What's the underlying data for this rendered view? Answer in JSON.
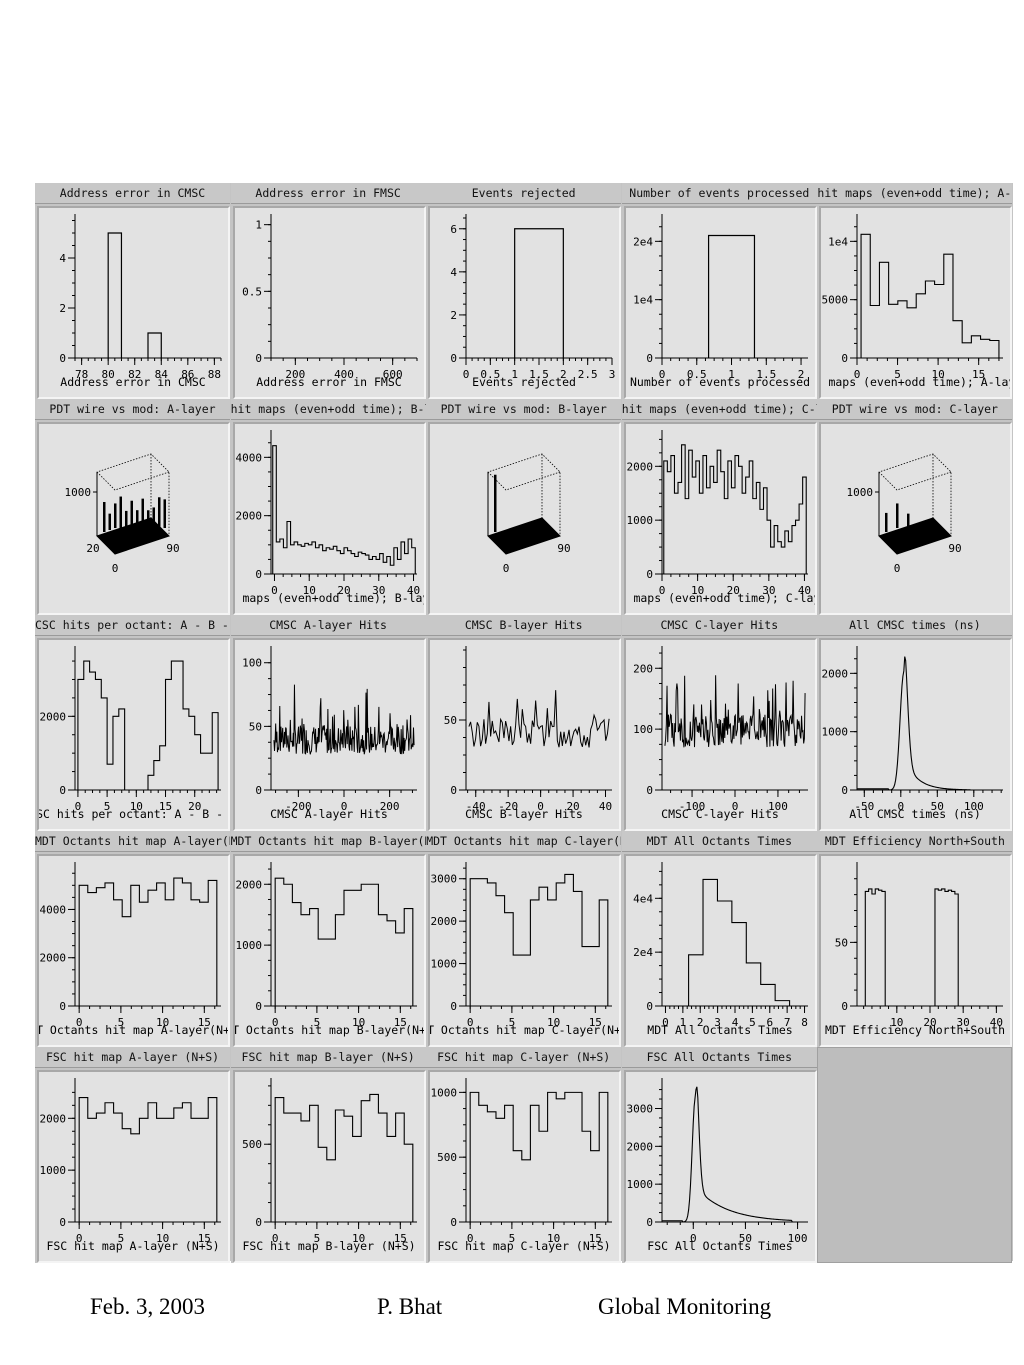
{
  "footer": {
    "date": "Feb. 3, 2003",
    "author": "P. Bhat",
    "title": "Global  Monitoring"
  },
  "colors": {
    "panel_bg": "#e2e2e2",
    "frame": "#c4c4c4",
    "ink": "#000000"
  },
  "panels": [
    {
      "title": "Address error in CMSC",
      "xlabel": "Address error in CMSC",
      "type": "hist",
      "xlim": [
        77.5,
        88.5
      ],
      "ylim": [
        0,
        5.6
      ],
      "xticks": [
        78,
        80,
        82,
        84,
        86,
        88
      ],
      "yticks": [
        0,
        2,
        4
      ],
      "bins": [
        [
          80,
          81,
          5
        ],
        [
          83,
          84,
          1
        ]
      ]
    },
    {
      "title": "Address error in FMSC",
      "xlabel": "Address error in FMSC",
      "type": "empty",
      "xlim": [
        100,
        700
      ],
      "ylim": [
        0,
        1.05
      ],
      "xticks": [
        200,
        400,
        600
      ],
      "yticks": [
        0,
        0.5,
        1
      ]
    },
    {
      "title": "Events rejected",
      "xlabel": "Events rejected",
      "type": "hist",
      "xlim": [
        0,
        3
      ],
      "ylim": [
        0,
        6.5
      ],
      "xticks": [
        0,
        0.5,
        1,
        1.5,
        2,
        2.5,
        3
      ],
      "yticks": [
        0,
        2,
        4,
        6
      ],
      "bins": [
        [
          1,
          2,
          6
        ]
      ]
    },
    {
      "title": "Number of events processed",
      "xlabel": "Number of events processed",
      "type": "hist",
      "xlim": [
        0,
        2.1
      ],
      "ylim": [
        0,
        24000
      ],
      "xticks": [
        0,
        0.5,
        1,
        1.5,
        2
      ],
      "ytick_labels": [
        "0",
        "1e4",
        "2e4"
      ],
      "yticks": [
        0,
        10000,
        20000
      ],
      "bins": [
        [
          0.67,
          1.33,
          21000
        ]
      ]
    },
    {
      "title": "hit maps (even+odd time); A-layer",
      "xlabel": "hit maps (even+odd time); A-layer",
      "type": "step",
      "xlim": [
        0,
        18
      ],
      "ylim": [
        0,
        12000
      ],
      "xticks": [
        0,
        5,
        10,
        15
      ],
      "ytick_labels": [
        "0",
        "5000",
        "1e4"
      ],
      "yticks": [
        0,
        5000,
        10000
      ],
      "values": [
        10600,
        4500,
        8200,
        4600,
        4900,
        4300,
        5500,
        6600,
        6300,
        8900,
        3200,
        1300,
        1900,
        1600,
        1500
      ]
    },
    {
      "title": "PDT wire vs mod: A-layer",
      "type": "lego",
      "ztick": "1000",
      "xlab": "20",
      "ylab": "90",
      "olab": "0",
      "peaks": [
        1100,
        600,
        900,
        1300,
        700,
        1000,
        800,
        1150,
        650,
        900,
        1200,
        1050
      ]
    },
    {
      "title": "hit maps (even+odd time); B-layer",
      "xlabel": "hit maps (even+odd time); B-layer",
      "type": "step",
      "xlim": [
        -1,
        41
      ],
      "ylim": [
        0,
        4800
      ],
      "xticks": [
        0,
        10,
        20,
        30,
        40
      ],
      "yticks": [
        0,
        2000,
        4000
      ],
      "values": [
        4400,
        1100,
        1200,
        900,
        1800,
        1000,
        1100,
        1000,
        950,
        1050,
        1000,
        1100,
        900,
        1000,
        800,
        900,
        850,
        950,
        800,
        700,
        900,
        800,
        700,
        600,
        750,
        700,
        650,
        500,
        600,
        500,
        700,
        400,
        600,
        300,
        900,
        500,
        1100,
        700,
        1200,
        900
      ]
    },
    {
      "title": "PDT wire vs mod: B-layer",
      "type": "lego",
      "ztick": "",
      "xlab": "",
      "ylab": "90",
      "olab": "0",
      "peaks": [
        2100,
        0,
        0,
        0,
        0,
        0,
        0,
        0,
        0,
        0,
        0,
        0
      ]
    },
    {
      "title": "hit maps (even+odd time); C-layer",
      "xlabel": "hit maps (even+odd time); C-layer",
      "type": "step",
      "xlim": [
        0,
        41
      ],
      "ylim": [
        0,
        2600
      ],
      "xticks": [
        0,
        10,
        20,
        30,
        40
      ],
      "yticks": [
        0,
        1000,
        2000
      ],
      "values": [
        2100,
        1900,
        2200,
        1500,
        1700,
        2400,
        1400,
        2300,
        1800,
        2100,
        1500,
        2200,
        1600,
        2000,
        1700,
        2300,
        1900,
        1400,
        2100,
        1600,
        2200,
        2000,
        1500,
        1800,
        2100,
        1400,
        1700,
        1200,
        1600,
        1000,
        500,
        900,
        600,
        500,
        800,
        600,
        900,
        1000,
        1300,
        1800
      ]
    },
    {
      "title": "PDT wire vs mod: C-layer",
      "type": "lego",
      "ztick": "1000",
      "xlab": "",
      "ylab": "90",
      "olab": "0",
      "peaks": [
        700,
        0,
        900,
        0,
        600,
        0,
        0,
        0,
        0,
        0,
        0,
        0
      ]
    },
    {
      "title": "CSC hits per octant: A - B - C",
      "xlabel": "CSC hits per octant: A - B - C",
      "type": "step",
      "xlim": [
        -0.5,
        24.5
      ],
      "ylim": [
        0,
        3800
      ],
      "xticks": [
        0,
        5,
        10,
        15,
        20
      ],
      "yticks": [
        0,
        2000
      ],
      "values": [
        3000,
        3500,
        3200,
        3000,
        2500,
        700,
        2000,
        2200,
        0,
        0,
        0,
        0,
        400,
        800,
        1200,
        3000,
        3500,
        3500,
        2200,
        2000,
        1500,
        1000,
        1000,
        2100
      ]
    },
    {
      "title": "CMSC A-layer Hits",
      "xlabel": "CMSC A-layer Hits",
      "type": "noisy",
      "xlim": [
        -320,
        320
      ],
      "ylim": [
        0,
        110
      ],
      "xticks": [
        -200,
        0,
        200
      ],
      "yticks": [
        0,
        50,
        100
      ],
      "n": 240,
      "base": 28,
      "amp": 38,
      "seed": 7
    },
    {
      "title": "CMSC B-layer Hits",
      "xlabel": "CMSC B-layer Hits",
      "type": "noisy",
      "xlim": [
        -46,
        44
      ],
      "ylim": [
        0,
        100
      ],
      "xticks": [
        -40,
        -20,
        0,
        20,
        40
      ],
      "yticks": [
        0,
        50
      ],
      "n": 85,
      "base": 30,
      "amp": 35,
      "seed": 13
    },
    {
      "title": "CMSC C-layer Hits",
      "xlabel": "CMSC C-layer Hits",
      "type": "noisy",
      "xlim": [
        -170,
        170
      ],
      "ylim": [
        0,
        230
      ],
      "xticks": [
        -100,
        0,
        100
      ],
      "yticks": [
        0,
        100,
        200
      ],
      "n": 200,
      "base": 70,
      "amp": 90,
      "seed": 21
    },
    {
      "title": "All CMSC times (ns)",
      "xlabel": "All CMSC times (ns)",
      "type": "peak",
      "xlim": [
        -60,
        140
      ],
      "ylim": [
        0,
        2400
      ],
      "xticks": [
        -50,
        0,
        50,
        100
      ],
      "yticks": [
        0,
        1000,
        2000
      ],
      "center": 4,
      "height": 2000,
      "width": 5,
      "tail": 18
    },
    {
      "title": "MDT Octants hit map A-layer(N+S)",
      "xlabel": "MDT Octants hit map A-layer(N+S)",
      "type": "step",
      "xlim": [
        -0.5,
        17
      ],
      "ylim": [
        0,
        5800
      ],
      "xticks": [
        0,
        5,
        10,
        15
      ],
      "yticks": [
        0,
        2000,
        4000
      ],
      "values": [
        5000,
        4700,
        4900,
        5100,
        4400,
        3700,
        5000,
        4300,
        4800,
        5100,
        4400,
        5300,
        5100,
        4400,
        4300,
        5200
      ]
    },
    {
      "title": "MDT Octants hit map B-layer(N+S)",
      "xlabel": "MDT Octants hit map B-layer(N+S)",
      "type": "step",
      "xlim": [
        -0.5,
        17
      ],
      "ylim": [
        0,
        2300
      ],
      "xticks": [
        0,
        5,
        10,
        15
      ],
      "yticks": [
        0,
        1000,
        2000
      ],
      "values": [
        2100,
        2000,
        1700,
        1500,
        1600,
        1100,
        1100,
        1500,
        1900,
        1900,
        2000,
        2000,
        1500,
        1400,
        1200,
        1600
      ]
    },
    {
      "title": "MDT Octants hit map C-layer(N+S)",
      "xlabel": "MDT Octants hit map C-layer(N+S)",
      "type": "step",
      "xlim": [
        -0.5,
        17
      ],
      "ylim": [
        0,
        3300
      ],
      "xticks": [
        0,
        5,
        10,
        15
      ],
      "yticks": [
        0,
        1000,
        2000,
        3000
      ],
      "values": [
        3000,
        3000,
        2900,
        2600,
        2200,
        1200,
        1200,
        2500,
        2800,
        2500,
        2900,
        3100,
        2700,
        1400,
        1400,
        2500
      ]
    },
    {
      "title": "MDT All Octants Times",
      "xlabel": "MDT All Octants Times",
      "type": "step",
      "xlim": [
        -0.2,
        8.2
      ],
      "ylim": [
        0,
        52000
      ],
      "xticks": [
        0,
        1,
        2,
        3,
        4,
        5,
        6,
        7,
        8
      ],
      "ytick_labels": [
        "0",
        "2e4",
        "4e4"
      ],
      "yticks": [
        0,
        20000,
        40000
      ],
      "values": [
        0,
        19000,
        47000,
        39000,
        31000,
        16000,
        8000,
        2000,
        0
      ],
      "xstart": 0.5,
      "xwidth": 0.83
    },
    {
      "title": "MDT Efficiency North+South",
      "xlabel": "MDT Efficiency North+South",
      "type": "step",
      "xlim": [
        -2,
        42
      ],
      "ylim": [
        0,
        110
      ],
      "xticks": [
        10,
        20,
        30,
        40
      ],
      "yticks": [
        0,
        50
      ],
      "values": [
        90,
        92,
        88,
        92,
        91,
        90,
        0,
        0,
        0,
        0,
        0,
        0,
        0,
        0,
        0,
        0,
        0,
        0,
        0,
        0,
        0,
        92,
        91,
        92,
        90,
        91,
        90,
        88
      ],
      "xstart": 0.5,
      "xwidth": 1
    },
    {
      "title": "FSC hit map A-layer (N+S)",
      "xlabel": "FSC hit map A-layer (N+S)",
      "type": "step",
      "xlim": [
        -0.5,
        17
      ],
      "ylim": [
        0,
        2700
      ],
      "xticks": [
        0,
        5,
        10,
        15
      ],
      "yticks": [
        0,
        1000,
        2000
      ],
      "values": [
        2400,
        2000,
        2100,
        2300,
        2100,
        1800,
        1700,
        2000,
        2300,
        2000,
        2000,
        2200,
        2300,
        2000,
        2000,
        2400
      ]
    },
    {
      "title": "FSC hit map B-layer (N+S)",
      "xlabel": "FSC hit map B-layer (N+S)",
      "type": "step",
      "xlim": [
        -0.5,
        17
      ],
      "ylim": [
        0,
        900
      ],
      "xticks": [
        0,
        5,
        10,
        15
      ],
      "yticks": [
        0,
        500
      ],
      "values": [
        800,
        700,
        700,
        650,
        750,
        480,
        400,
        720,
        680,
        550,
        780,
        820,
        700,
        550,
        700,
        500
      ]
    },
    {
      "title": "FSC hit map C-layer (N+S)",
      "xlabel": "FSC hit map C-layer (N+S)",
      "type": "step",
      "xlim": [
        -0.5,
        17
      ],
      "ylim": [
        0,
        1080
      ],
      "xticks": [
        0,
        5,
        10,
        15
      ],
      "yticks": [
        0,
        500,
        1000
      ],
      "values": [
        1000,
        900,
        850,
        800,
        900,
        550,
        480,
        900,
        700,
        1000,
        950,
        1000,
        1000,
        700,
        550,
        1000
      ]
    },
    {
      "title": "FSC All Octants Times",
      "xlabel": "FSC All Octants Times",
      "type": "peak",
      "xlim": [
        -30,
        110
      ],
      "ylim": [
        0,
        3700
      ],
      "xticks": [
        0,
        50,
        100
      ],
      "yticks": [
        0,
        1000,
        2000,
        3000
      ],
      "center": 2,
      "height": 3300,
      "width": 3,
      "tail": 30
    }
  ]
}
